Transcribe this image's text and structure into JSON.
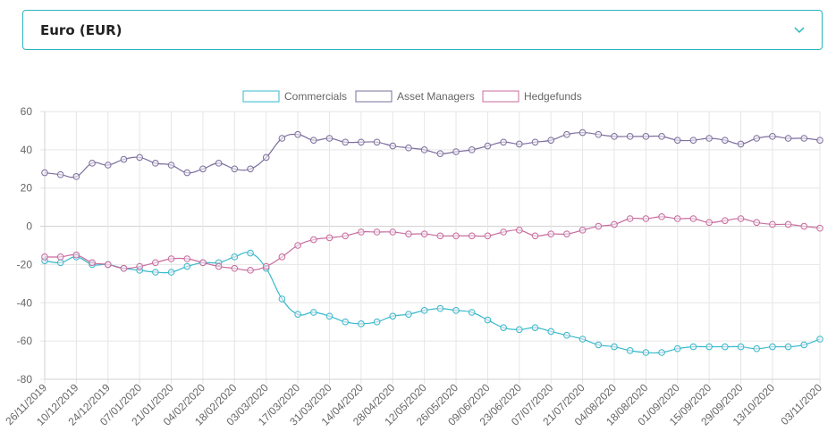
{
  "currency_select": {
    "value": "Euro (EUR)",
    "icon": "chevron-down-icon"
  },
  "chart_data": {
    "type": "line",
    "title": "",
    "xlabel": "",
    "ylabel": "",
    "ylim": [
      -80,
      60
    ],
    "yticks": [
      60,
      40,
      20,
      0,
      -20,
      -40,
      -60,
      -80
    ],
    "grid": true,
    "legend": "top-center",
    "x": [
      "26/11/2019",
      "03/12/2019",
      "10/12/2019",
      "17/12/2019",
      "24/12/2019",
      "31/12/2019",
      "07/01/2020",
      "14/01/2020",
      "21/01/2020",
      "28/01/2020",
      "04/02/2020",
      "11/02/2020",
      "18/02/2020",
      "25/02/2020",
      "03/03/2020",
      "10/03/2020",
      "17/03/2020",
      "24/03/2020",
      "31/03/2020",
      "07/04/2020",
      "14/04/2020",
      "21/04/2020",
      "28/04/2020",
      "05/05/2020",
      "12/05/2020",
      "19/05/2020",
      "26/05/2020",
      "02/06/2020",
      "09/06/2020",
      "16/06/2020",
      "23/06/2020",
      "30/06/2020",
      "07/07/2020",
      "14/07/2020",
      "21/07/2020",
      "28/07/2020",
      "04/08/2020",
      "11/08/2020",
      "18/08/2020",
      "25/08/2020",
      "01/09/2020",
      "08/09/2020",
      "15/09/2020",
      "22/09/2020",
      "29/09/2020",
      "06/10/2020",
      "13/10/2020",
      "20/10/2020",
      "27/10/2020",
      "03/11/2020"
    ],
    "xtick_labels": [
      "26/11/2019",
      "10/12/2019",
      "24/12/2019",
      "07/01/2020",
      "21/01/2020",
      "04/02/2020",
      "18/02/2020",
      "03/03/2020",
      "17/03/2020",
      "31/03/2020",
      "14/04/2020",
      "28/04/2020",
      "12/05/2020",
      "26/05/2020",
      "09/06/2020",
      "23/06/2020",
      "07/07/2020",
      "21/07/2020",
      "04/08/2020",
      "18/08/2020",
      "01/09/2020",
      "15/09/2020",
      "29/09/2020",
      "13/10/2020",
      "03/11/2020"
    ],
    "series": [
      {
        "name": "Commercials",
        "color": "#36b9cc",
        "values": [
          -18,
          -19,
          -16,
          -20,
          -20,
          -22,
          -23,
          -24,
          -24,
          -21,
          -19,
          -19,
          -16,
          -14,
          -22,
          -38,
          -46,
          -45,
          -47,
          -50,
          -51,
          -50,
          -47,
          -46,
          -44,
          -43,
          -44,
          -45,
          -49,
          -53,
          -54,
          -53,
          -55,
          -57,
          -59,
          -62,
          -63,
          -65,
          -66,
          -66,
          -64,
          -63,
          -63,
          -63,
          -63,
          -64,
          -63,
          -63,
          -62,
          -59
        ]
      },
      {
        "name": "Asset Managers",
        "color": "#7b6f9e",
        "values": [
          28,
          27,
          26,
          33,
          32,
          35,
          36,
          33,
          32,
          28,
          30,
          33,
          30,
          30,
          36,
          46,
          48,
          45,
          46,
          44,
          44,
          44,
          42,
          41,
          40,
          38,
          39,
          40,
          42,
          44,
          43,
          44,
          45,
          48,
          49,
          48,
          47,
          47,
          47,
          47,
          45,
          45,
          46,
          45,
          43,
          46,
          47,
          46,
          46,
          45
        ]
      },
      {
        "name": "Hedgefunds",
        "color": "#c86b9e",
        "values": [
          -16,
          -16,
          -15,
          -19,
          -20,
          -22,
          -21,
          -19,
          -17,
          -17,
          -19,
          -21,
          -22,
          -23,
          -21,
          -16,
          -10,
          -7,
          -6,
          -5,
          -3,
          -3,
          -3,
          -4,
          -4,
          -5,
          -5,
          -5,
          -5,
          -3,
          -2,
          -5,
          -4,
          -4,
          -2,
          0,
          1,
          4,
          4,
          5,
          4,
          4,
          2,
          3,
          4,
          2,
          1,
          1,
          0,
          -1
        ]
      }
    ]
  }
}
